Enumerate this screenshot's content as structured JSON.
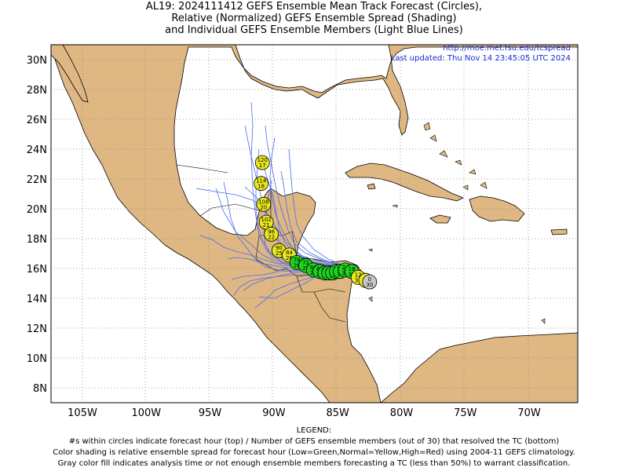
{
  "title": {
    "line1": "AL19: 2024111412 GEFS Ensemble Mean Track Forecast (Circles),",
    "line2": "Relative (Normalized) GEFS Ensemble Spread (Shading)",
    "line3": "and Individual GEFS Ensemble Members (Light Blue Lines)"
  },
  "header_right": {
    "url": "http://moe.met.fsu.edu/tcspread",
    "updated": "Last updated: Thu Nov 14 23:45:05 UTC 2024"
  },
  "axes": {
    "lat_labels": [
      "30N",
      "28N",
      "26N",
      "24N",
      "22N",
      "20N",
      "18N",
      "16N",
      "14N",
      "12N",
      "10N",
      "8N"
    ],
    "lon_labels": [
      "105W",
      "100W",
      "95W",
      "90W",
      "85W",
      "80W",
      "75W",
      "70W"
    ]
  },
  "colors": {
    "land": "#dfb783",
    "ocean": "#ffffff",
    "track_members": "#4a6cf0",
    "spread_low": "#1fd21f",
    "spread_normal": "#e8e820",
    "spread_high": "#e02020",
    "analysis_gray": "#c8c8c8"
  },
  "mean_track": [
    {
      "hour": "0",
      "members": "30",
      "lon": -82.5,
      "lat": 15.1,
      "class": "gray"
    },
    {
      "hour": "6",
      "members": "30",
      "lon": -82.8,
      "lat": 15.2,
      "class": "yellow"
    },
    {
      "hour": "12",
      "members": "30",
      "lon": -83.4,
      "lat": 15.4,
      "class": "yellow"
    },
    {
      "hour": "18",
      "members": "30",
      "lon": -83.9,
      "lat": 15.8,
      "class": "green"
    },
    {
      "hour": "24",
      "members": "30",
      "lon": -84.4,
      "lat": 15.9,
      "class": "green"
    },
    {
      "hour": "30",
      "members": "30",
      "lon": -84.8,
      "lat": 15.8,
      "class": "green"
    },
    {
      "hour": "36",
      "members": "30",
      "lon": -85.1,
      "lat": 15.8,
      "class": "green"
    },
    {
      "hour": "42",
      "members": "30",
      "lon": -85.4,
      "lat": 15.7,
      "class": "green"
    },
    {
      "hour": "48",
      "members": "30",
      "lon": -85.7,
      "lat": 15.7,
      "class": "green"
    },
    {
      "hour": "54",
      "members": "30",
      "lon": -86.0,
      "lat": 15.7,
      "class": "green"
    },
    {
      "hour": "60",
      "members": "29",
      "lon": -86.4,
      "lat": 15.8,
      "class": "green"
    },
    {
      "hour": "66",
      "members": "28",
      "lon": -86.9,
      "lat": 15.9,
      "class": "green"
    },
    {
      "hour": "72",
      "members": "28",
      "lon": -87.5,
      "lat": 16.2,
      "class": "green"
    },
    {
      "hour": "78",
      "members": "26",
      "lon": -88.2,
      "lat": 16.4,
      "class": "green"
    },
    {
      "hour": "84",
      "members": "26",
      "lon": -88.8,
      "lat": 16.9,
      "class": "yellow"
    },
    {
      "hour": "90",
      "members": "25",
      "lon": -89.6,
      "lat": 17.2,
      "class": "yellow"
    },
    {
      "hour": "96",
      "members": "22",
      "lon": -90.2,
      "lat": 18.3,
      "class": "yellow"
    },
    {
      "hour": "102",
      "members": "21",
      "lon": -90.6,
      "lat": 19.1,
      "class": "yellow"
    },
    {
      "hour": "108",
      "members": "20",
      "lon": -90.8,
      "lat": 20.3,
      "class": "yellow"
    },
    {
      "hour": "114",
      "members": "18",
      "lon": -91.0,
      "lat": 21.7,
      "class": "yellow"
    },
    {
      "hour": "120",
      "members": "17",
      "lon": -90.9,
      "lat": 23.1,
      "class": "yellow"
    }
  ],
  "legend": {
    "heading": "LEGEND:",
    "line1": "#s within circles indicate forecast hour (top) / Number of GEFS ensemble members (out of 30) that resolved the TC (bottom)",
    "line2": "Color shading is relative ensemble spread for forecast hour (Low=Green,Normal=Yellow,High=Red) using 2004-11 GEFS climatology.",
    "line3": "Gray color fill indicates analysis time or not enough ensemble members forecasting a TC (less than 50%) to warrant classification."
  }
}
